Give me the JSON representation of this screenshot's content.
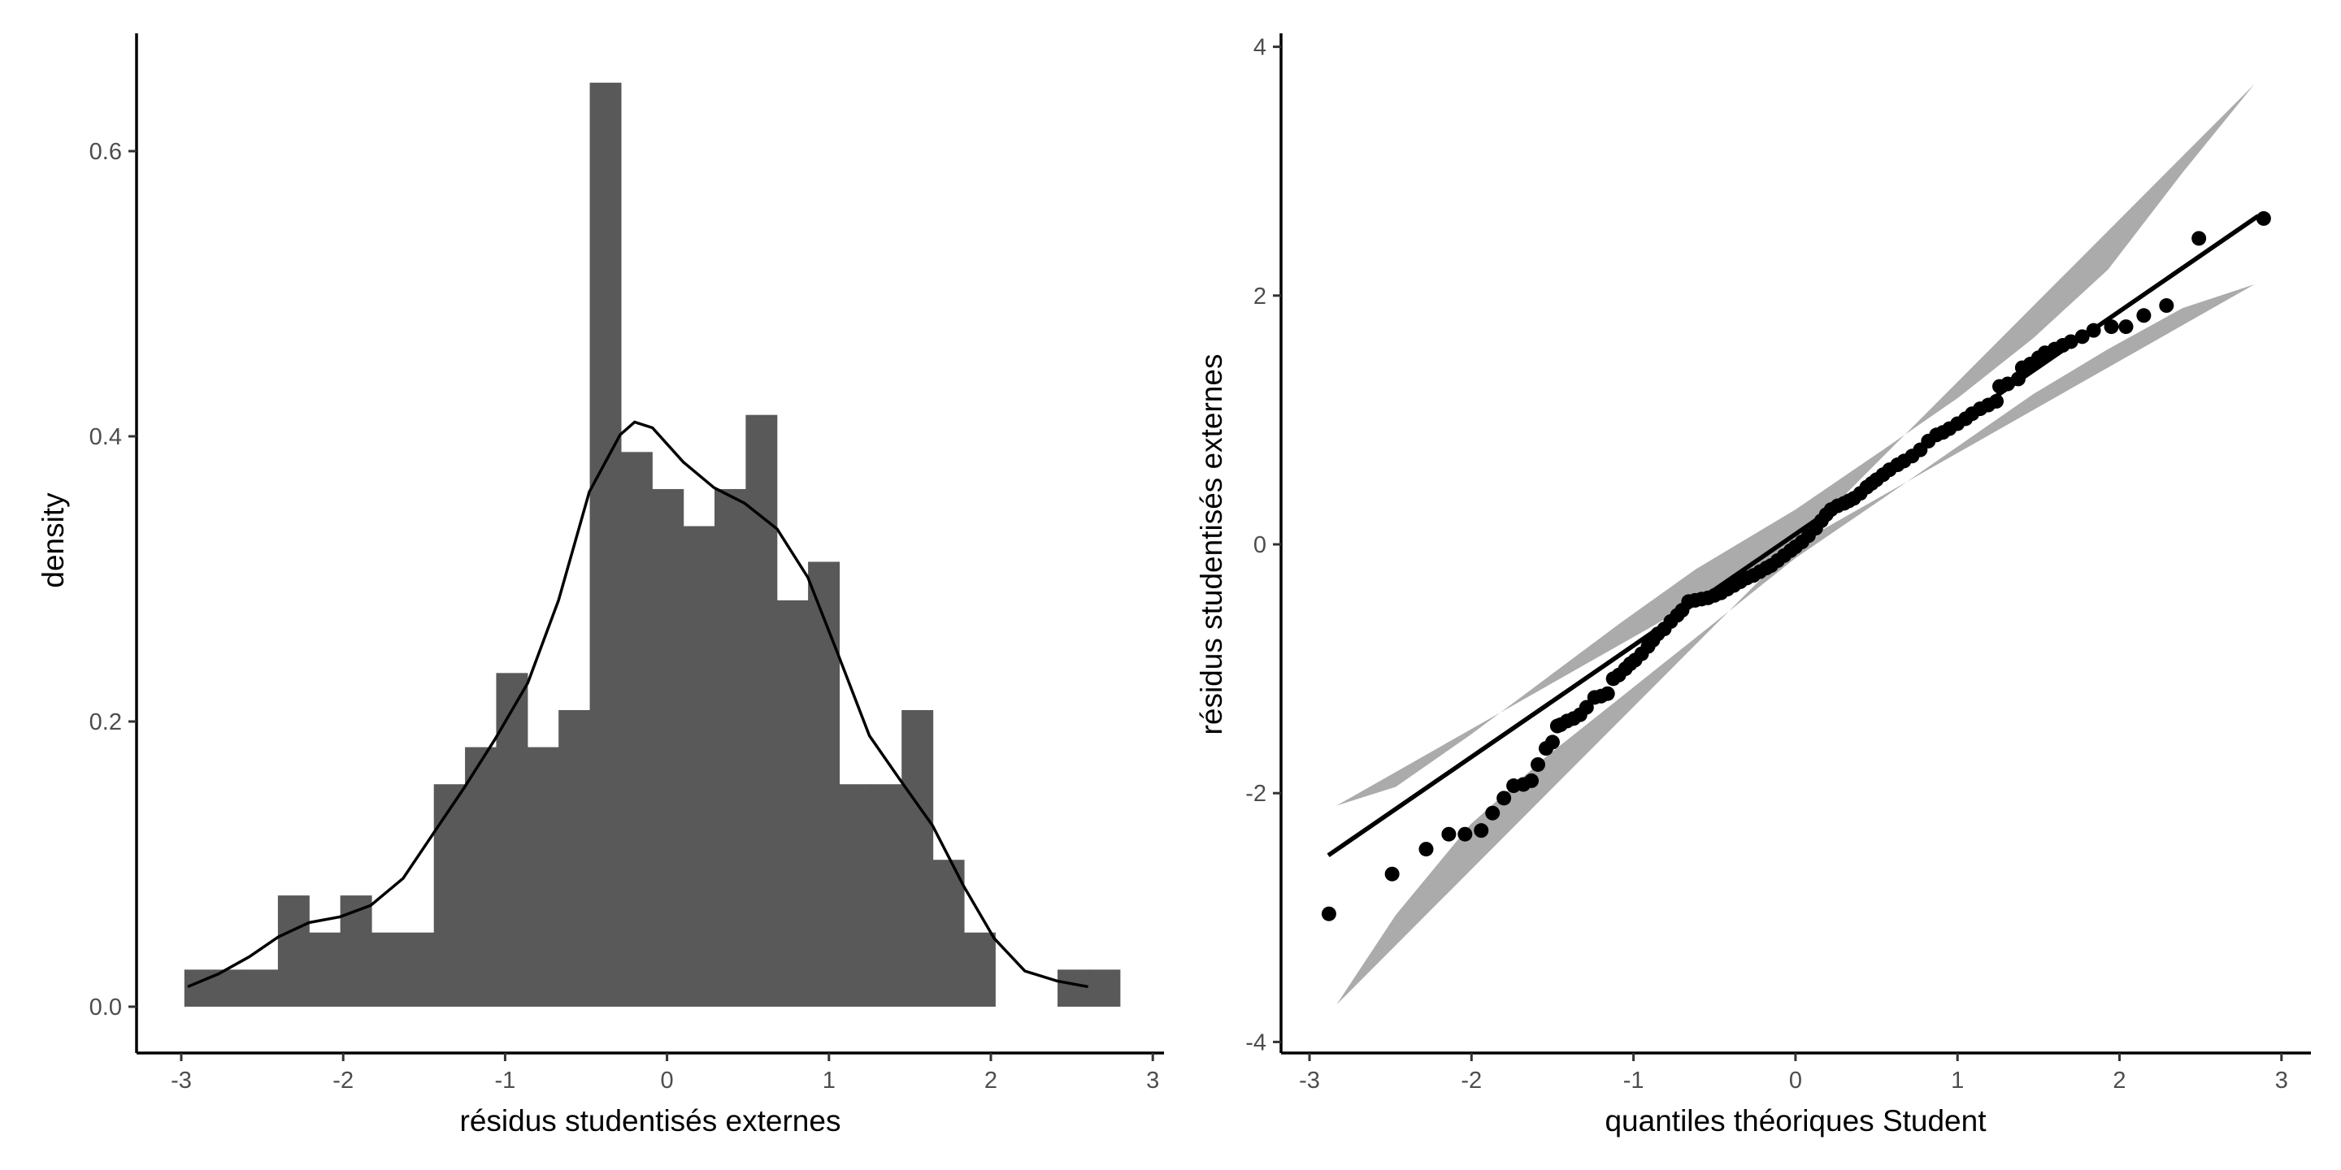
{
  "chart_data": [
    {
      "type": "bar",
      "subtype": "histogram_with_density",
      "xlabel": "résidus studentisés externes",
      "ylabel": "density",
      "xlim": [
        -3.3,
        3.1
      ],
      "ylim": [
        -0.033,
        0.68
      ],
      "xticks": [
        -3,
        -2,
        -1,
        0,
        1,
        2,
        3
      ],
      "yticks": [
        0.0,
        0.2,
        0.4,
        0.6
      ],
      "ytick_labels": [
        "0.0",
        "0.2",
        "0.4",
        "0.6"
      ],
      "bin_start": -2.981,
      "bin_width": 0.1926,
      "bin_heights": [
        0.026,
        0.026,
        0.026,
        0.078,
        0.052,
        0.078,
        0.052,
        0.052,
        0.156,
        0.182,
        0.234,
        0.182,
        0.208,
        0.648,
        0.389,
        0.363,
        0.337,
        0.363,
        0.415,
        0.285,
        0.312,
        0.156,
        0.156,
        0.208,
        0.103,
        0.052,
        0,
        0,
        0.026,
        0.026
      ],
      "bar_color": "#595959",
      "density_curve": [
        [
          -2.96,
          0.014
        ],
        [
          -2.77,
          0.023
        ],
        [
          -2.58,
          0.035
        ],
        [
          -2.4,
          0.049
        ],
        [
          -2.21,
          0.059
        ],
        [
          -2.02,
          0.063
        ],
        [
          -1.83,
          0.071
        ],
        [
          -1.63,
          0.09
        ],
        [
          -1.44,
          0.122
        ],
        [
          -1.25,
          0.154
        ],
        [
          -1.06,
          0.188
        ],
        [
          -0.86,
          0.227
        ],
        [
          -0.67,
          0.285
        ],
        [
          -0.48,
          0.361
        ],
        [
          -0.29,
          0.401
        ],
        [
          -0.2,
          0.41
        ],
        [
          -0.09,
          0.406
        ],
        [
          0.1,
          0.382
        ],
        [
          0.29,
          0.364
        ],
        [
          0.48,
          0.353
        ],
        [
          0.68,
          0.335
        ],
        [
          0.87,
          0.301
        ],
        [
          1.06,
          0.246
        ],
        [
          1.25,
          0.19
        ],
        [
          1.44,
          0.159
        ],
        [
          1.64,
          0.127
        ],
        [
          1.83,
          0.085
        ],
        [
          2.02,
          0.048
        ],
        [
          2.21,
          0.025
        ],
        [
          2.41,
          0.018
        ],
        [
          2.6,
          0.014
        ]
      ]
    },
    {
      "type": "scatter",
      "subtype": "qq_plot",
      "xlabel": "quantiles théoriques Student",
      "ylabel": "résidus studentisés externes",
      "xlim": [
        -3.2,
        3.2
      ],
      "ylim": [
        -4.1,
        4.2
      ],
      "xticks": [
        -3,
        -2,
        -1,
        0,
        1,
        2,
        3
      ],
      "yticks": [
        -4,
        -2,
        0,
        2,
        4
      ],
      "reference_line": [
        [
          -2.884,
          -2.5
        ],
        [
          2.856,
          2.64
        ]
      ],
      "band_color": "#ababab",
      "band_upper": [
        [
          -2.833,
          -2.1
        ],
        [
          -2.468,
          -1.95
        ],
        [
          -2.005,
          -1.53
        ],
        [
          -1.542,
          -1.08
        ],
        [
          -1.079,
          -0.63
        ],
        [
          -0.616,
          -0.2
        ],
        [
          0.0,
          0.28
        ],
        [
          0.54,
          0.76
        ],
        [
          1.005,
          1.18
        ],
        [
          1.47,
          1.66
        ],
        [
          1.93,
          2.21
        ],
        [
          2.39,
          2.99
        ],
        [
          2.833,
          3.7
        ]
      ],
      "band_lower": [
        [
          -2.833,
          -3.7
        ],
        [
          -2.468,
          -2.98
        ],
        [
          -2.005,
          -2.25
        ],
        [
          -1.542,
          -1.71
        ],
        [
          -1.079,
          -1.23
        ],
        [
          -0.616,
          -0.75
        ],
        [
          0.0,
          -0.11
        ],
        [
          0.54,
          0.37
        ],
        [
          1.005,
          0.79
        ],
        [
          1.47,
          1.21
        ],
        [
          1.93,
          1.57
        ],
        [
          2.39,
          1.9
        ],
        [
          2.833,
          2.09
        ]
      ],
      "points": [
        [
          -2.88,
          -2.97
        ],
        [
          -2.49,
          -2.65
        ],
        [
          -2.28,
          -2.45
        ],
        [
          -2.14,
          -2.33
        ],
        [
          -2.04,
          -2.33
        ],
        [
          -1.94,
          -2.3
        ],
        [
          -1.87,
          -2.16
        ],
        [
          -1.8,
          -2.04
        ],
        [
          -1.74,
          -1.94
        ],
        [
          -1.68,
          -1.93
        ],
        [
          -1.63,
          -1.9
        ],
        [
          -1.59,
          -1.77
        ],
        [
          -1.54,
          -1.64
        ],
        [
          -1.5,
          -1.59
        ],
        [
          -1.47,
          -1.46
        ],
        [
          -1.45,
          -1.45
        ],
        [
          -1.41,
          -1.42
        ],
        [
          -1.37,
          -1.4
        ],
        [
          -1.33,
          -1.37
        ],
        [
          -1.29,
          -1.31
        ],
        [
          -1.24,
          -1.23
        ],
        [
          -1.2,
          -1.22
        ],
        [
          -1.16,
          -1.2
        ],
        [
          -1.125,
          -1.08
        ],
        [
          -1.09,
          -1.05
        ],
        [
          -1.05,
          -1.0
        ],
        [
          -1.02,
          -0.96
        ],
        [
          -0.99,
          -0.93
        ],
        [
          -0.95,
          -0.88
        ],
        [
          -0.91,
          -0.82
        ],
        [
          -0.88,
          -0.77
        ],
        [
          -0.85,
          -0.72
        ],
        [
          -0.81,
          -0.68
        ],
        [
          -0.77,
          -0.62
        ],
        [
          -0.73,
          -0.57
        ],
        [
          -0.7,
          -0.53
        ],
        [
          -0.66,
          -0.46
        ],
        [
          -0.62,
          -0.45
        ],
        [
          -0.58,
          -0.44
        ],
        [
          -0.54,
          -0.43
        ],
        [
          -0.5,
          -0.41
        ],
        [
          -0.46,
          -0.39
        ],
        [
          -0.42,
          -0.36
        ],
        [
          -0.38,
          -0.33
        ],
        [
          -0.34,
          -0.3
        ],
        [
          -0.3,
          -0.27
        ],
        [
          -0.26,
          -0.25
        ],
        [
          -0.22,
          -0.22
        ],
        [
          -0.18,
          -0.19
        ],
        [
          -0.15,
          -0.17
        ],
        [
          -0.11,
          -0.13
        ],
        [
          -0.07,
          -0.09
        ],
        [
          -0.03,
          -0.05
        ],
        [
          0,
          -0.02
        ],
        [
          0.04,
          0.02
        ],
        [
          0.08,
          0.07
        ],
        [
          0.125,
          0.13
        ],
        [
          0.16,
          0.19
        ],
        [
          0.19,
          0.24
        ],
        [
          0.22,
          0.28
        ],
        [
          0.26,
          0.31
        ],
        [
          0.3,
          0.33
        ],
        [
          0.33,
          0.35
        ],
        [
          0.36,
          0.37
        ],
        [
          0.4,
          0.41
        ],
        [
          0.44,
          0.46
        ],
        [
          0.47,
          0.49
        ],
        [
          0.5,
          0.52
        ],
        [
          0.54,
          0.56
        ],
        [
          0.58,
          0.6
        ],
        [
          0.63,
          0.64
        ],
        [
          0.67,
          0.67
        ],
        [
          0.72,
          0.71
        ],
        [
          0.77,
          0.76
        ],
        [
          0.82,
          0.83
        ],
        [
          0.87,
          0.88
        ],
        [
          0.91,
          0.9
        ],
        [
          0.95,
          0.93
        ],
        [
          1.0,
          0.97
        ],
        [
          1.05,
          1.01
        ],
        [
          1.09,
          1.05
        ],
        [
          1.14,
          1.09
        ],
        [
          1.19,
          1.12
        ],
        [
          1.24,
          1.15
        ],
        [
          1.26,
          1.27
        ],
        [
          1.31,
          1.29
        ],
        [
          1.375,
          1.33
        ],
        [
          1.4,
          1.42
        ],
        [
          1.45,
          1.45
        ],
        [
          1.5,
          1.5
        ],
        [
          1.54,
          1.54
        ],
        [
          1.6,
          1.57
        ],
        [
          1.65,
          1.6
        ],
        [
          1.7,
          1.63
        ],
        [
          1.77,
          1.67
        ],
        [
          1.84,
          1.72
        ],
        [
          1.95,
          1.75
        ],
        [
          2.04,
          1.75
        ],
        [
          2.15,
          1.84
        ],
        [
          2.29,
          1.92
        ],
        [
          2.49,
          2.46
        ],
        [
          2.89,
          2.62
        ]
      ]
    }
  ]
}
